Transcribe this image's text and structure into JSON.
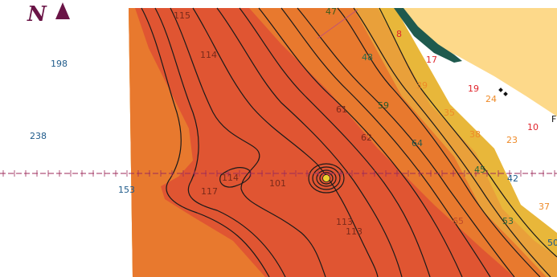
{
  "map": {
    "compass_letter": "N",
    "colors": {
      "deep_red": "#E05532",
      "mid_orange": "#E8792E",
      "orange": "#E9A03A",
      "yellow": "#E8B73A",
      "land": "#FDD98A",
      "shore_dark": "#1F5A4E",
      "contour_line": "#1a1a1a",
      "boundary_dash": "#9C2A5A",
      "sounding_blue": "#1E5A8A",
      "sounding_red": "#E0242C",
      "sounding_orange": "#EE8A28",
      "contour_label": "#7A2A1A",
      "compass": "#6A1446"
    },
    "soundings": [
      {
        "id": "s198",
        "text": "198",
        "color": "sounding_blue"
      },
      {
        "id": "s238",
        "text": "238",
        "color": "sounding_blue"
      },
      {
        "id": "s153",
        "text": "153",
        "color": "sounding_blue"
      },
      {
        "id": "s8",
        "text": "8",
        "color": "sounding_red"
      },
      {
        "id": "s17",
        "text": "17",
        "color": "sounding_red"
      },
      {
        "id": "s19",
        "text": "19",
        "color": "sounding_red"
      },
      {
        "id": "s10",
        "text": "10",
        "color": "sounding_red"
      },
      {
        "id": "s39",
        "text": "39",
        "color": "sounding_orange"
      },
      {
        "id": "s35",
        "text": "35",
        "color": "sounding_orange"
      },
      {
        "id": "s24",
        "text": "24",
        "color": "sounding_orange"
      },
      {
        "id": "s38",
        "text": "38",
        "color": "sounding_orange"
      },
      {
        "id": "s23",
        "text": "23",
        "color": "sounding_orange"
      },
      {
        "id": "s37",
        "text": "37",
        "color": "sounding_orange"
      },
      {
        "id": "s42",
        "text": "42",
        "color": "sounding_blue"
      },
      {
        "id": "s50",
        "text": "50",
        "color": "sounding_blue"
      }
    ],
    "contour_labels": [
      {
        "id": "c115",
        "text": "115"
      },
      {
        "id": "c114a",
        "text": "114"
      },
      {
        "id": "c47",
        "text": "47"
      },
      {
        "id": "c48",
        "text": "48"
      },
      {
        "id": "c59",
        "text": "59"
      },
      {
        "id": "c61",
        "text": "61"
      },
      {
        "id": "c62",
        "text": "62"
      },
      {
        "id": "c64",
        "text": "64"
      },
      {
        "id": "c45",
        "text": "45"
      },
      {
        "id": "c114b",
        "text": "114"
      },
      {
        "id": "c117",
        "text": "117"
      },
      {
        "id": "c101",
        "text": "101"
      },
      {
        "id": "c113a",
        "text": "113"
      },
      {
        "id": "c113b",
        "text": "113"
      },
      {
        "id": "c65",
        "text": "65"
      },
      {
        "id": "c53",
        "text": "53"
      }
    ],
    "edge_text": "F"
  }
}
